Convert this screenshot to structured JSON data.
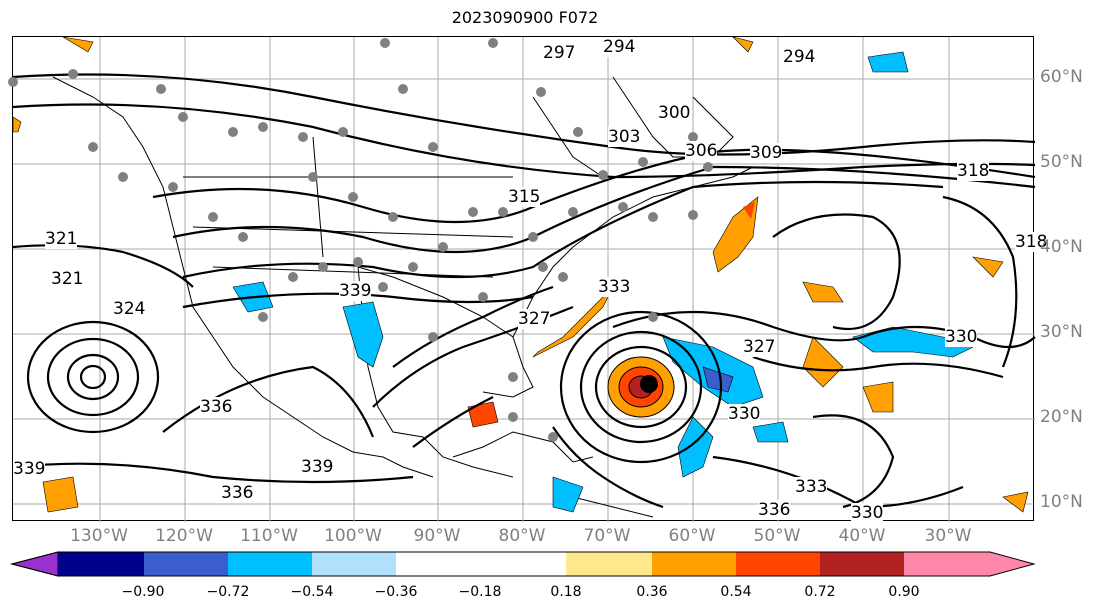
{
  "title": "2023090900 F072",
  "lat_labels": [
    "60°N",
    "50°N",
    "40°N",
    "30°N",
    "20°N",
    "10°N"
  ],
  "lon_labels": [
    "130°W",
    "120°W",
    "110°W",
    "100°W",
    "90°W",
    "80°W",
    "70°W",
    "60°W",
    "50°W",
    "40°W",
    "30°W"
  ],
  "contour_labels": [
    "294",
    "294",
    "297",
    "300",
    "303",
    "306",
    "309",
    "315",
    "318",
    "318",
    "321",
    "321",
    "324",
    "327",
    "327",
    "330",
    "330",
    "333",
    "333",
    "336",
    "336",
    "339",
    "339",
    "339",
    "330",
    "336"
  ],
  "colorbar": {
    "ticks": [
      "−0.90",
      "−0.72",
      "−0.54",
      "−0.36",
      "−0.18",
      "0.18",
      "0.36",
      "0.54",
      "0.72",
      "0.90"
    ],
    "colors": [
      "#9932cc",
      "#00008b",
      "#3a5fcd",
      "#00bfff",
      "#b0e0fa",
      "#ffffff",
      "#ffe88c",
      "#ff9f00",
      "#ff4500",
      "#b22222",
      "#ff88aa"
    ]
  }
}
